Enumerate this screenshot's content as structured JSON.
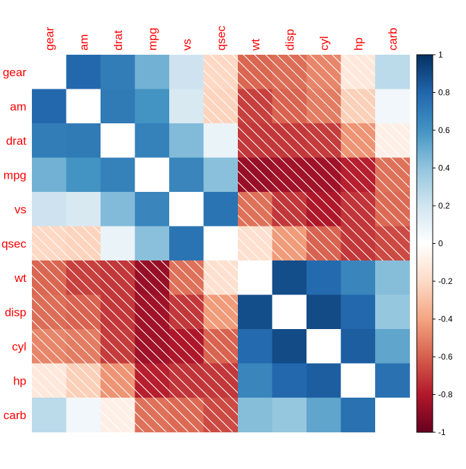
{
  "chart_data": {
    "type": "heatmap",
    "title": "",
    "xlabel": "",
    "ylabel": "",
    "variables": [
      "gear",
      "am",
      "drat",
      "mpg",
      "vs",
      "qsec",
      "wt",
      "disp",
      "cyl",
      "hp",
      "carb"
    ],
    "matrix": [
      [
        1.0,
        0.79,
        0.7,
        0.48,
        0.21,
        -0.21,
        -0.58,
        -0.56,
        -0.49,
        -0.13,
        0.27
      ],
      [
        0.79,
        1.0,
        0.71,
        0.6,
        0.17,
        -0.23,
        -0.69,
        -0.59,
        -0.52,
        -0.24,
        0.06
      ],
      [
        0.7,
        0.71,
        1.0,
        0.68,
        0.44,
        0.09,
        -0.71,
        -0.71,
        -0.7,
        -0.45,
        -0.09
      ],
      [
        0.48,
        0.6,
        0.68,
        1.0,
        0.66,
        0.42,
        -0.87,
        -0.85,
        -0.85,
        -0.78,
        -0.55
      ],
      [
        0.21,
        0.17,
        0.44,
        0.66,
        1.0,
        0.74,
        -0.55,
        -0.71,
        -0.81,
        -0.72,
        -0.57
      ],
      [
        -0.21,
        -0.23,
        0.09,
        0.42,
        0.74,
        1.0,
        -0.17,
        -0.43,
        -0.59,
        -0.71,
        -0.66
      ],
      [
        -0.58,
        -0.69,
        -0.71,
        -0.87,
        -0.55,
        -0.17,
        1.0,
        0.89,
        0.78,
        0.66,
        0.43
      ],
      [
        -0.56,
        -0.59,
        -0.71,
        -0.85,
        -0.71,
        -0.43,
        0.89,
        1.0,
        0.9,
        0.79,
        0.39
      ],
      [
        -0.49,
        -0.52,
        -0.7,
        -0.85,
        -0.81,
        -0.59,
        0.78,
        0.9,
        1.0,
        0.83,
        0.53
      ],
      [
        -0.13,
        -0.24,
        -0.45,
        -0.78,
        -0.72,
        -0.71,
        0.66,
        0.79,
        0.83,
        1.0,
        0.75
      ],
      [
        0.27,
        0.06,
        -0.09,
        -0.55,
        -0.57,
        -0.66,
        0.43,
        0.39,
        0.53,
        0.75,
        1.0
      ]
    ],
    "color_scale": {
      "min": -1,
      "max": 1,
      "ticks": [
        "1",
        "0.8",
        "0.6",
        "0.4",
        "0.2",
        "0",
        "-0.2",
        "-0.4",
        "-0.6",
        "-0.8",
        "-1"
      ],
      "stops": [
        "#67001F",
        "#B2182B",
        "#D6604D",
        "#F4A582",
        "#FDDBC7",
        "#FFFFFF",
        "#D1E5F0",
        "#92C5DE",
        "#4393C3",
        "#2166AC",
        "#053061"
      ]
    },
    "diagonal_blank": true,
    "negative_hatch": true,
    "label_color": "#FF0000",
    "grid": false,
    "legend_position": "right"
  }
}
